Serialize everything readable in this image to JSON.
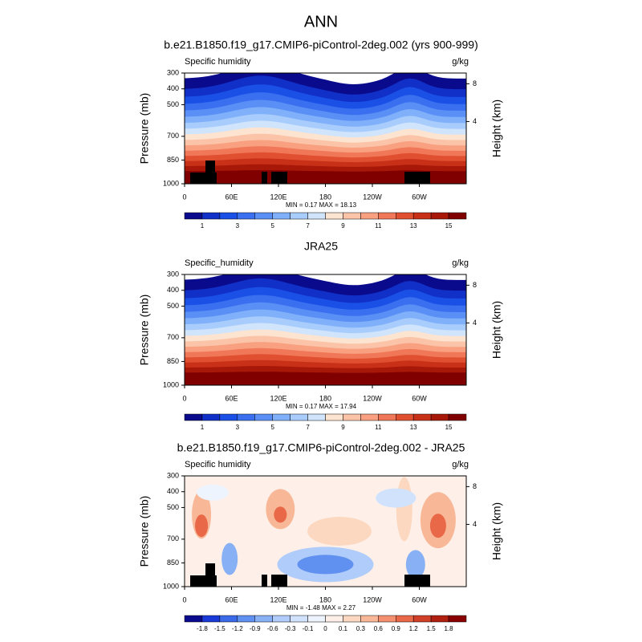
{
  "title": "ANN",
  "panels": [
    {
      "title": "b.e21.B1850.f19_g17.CMIP6-piControl-2deg.002 (yrs 900-999)",
      "left_label": "Specific humidity",
      "right_label": "g/kg",
      "y_label": "Pressure (mb)",
      "y2_label": "Height (km)",
      "ylim": [
        300,
        1000
      ],
      "yticks": [
        300,
        400,
        500,
        700,
        850,
        1000
      ],
      "y2ticks": [
        8,
        4
      ],
      "xlim": [
        0,
        360
      ],
      "xticks": [
        0,
        {
          "value": 60,
          "label": "60E"
        },
        {
          "value": 120,
          "label": "120E"
        },
        180,
        {
          "value": 240,
          "label": "120W"
        },
        {
          "value": 300,
          "label": "60W"
        }
      ],
      "stats": "MIN =  0.17  MAX =  18.13",
      "colorbar_labels": [
        1,
        3,
        5,
        7,
        9,
        11,
        13,
        15
      ],
      "colorbar_colors": [
        "#0a0a8c",
        "#1030c8",
        "#1a50e6",
        "#3a70f0",
        "#5a90f5",
        "#80b0fa",
        "#a8ccfc",
        "#d0e4fc",
        "#fde4d0",
        "#fbc4a8",
        "#f8a080",
        "#f07858",
        "#e05030",
        "#c83018",
        "#a81808",
        "#800000"
      ]
    },
    {
      "title": "JRA25",
      "left_label": "Specific_humidity",
      "right_label": "g/kg",
      "y_label": "Pressure (mb)",
      "y2_label": "Height (km)",
      "ylim": [
        300,
        1000
      ],
      "yticks": [
        300,
        400,
        500,
        700,
        850,
        1000
      ],
      "y2ticks": [
        8,
        4
      ],
      "xlim": [
        0,
        360
      ],
      "xticks": [
        0,
        {
          "value": 60,
          "label": "60E"
        },
        {
          "value": 120,
          "label": "120E"
        },
        180,
        {
          "value": 240,
          "label": "120W"
        },
        {
          "value": 300,
          "label": "60W"
        }
      ],
      "stats": "MIN =  0.17  MAX =  17.94",
      "colorbar_labels": [
        1,
        3,
        5,
        7,
        9,
        11,
        13,
        15
      ],
      "colorbar_colors": [
        "#0a0a8c",
        "#1030c8",
        "#1a50e6",
        "#3a70f0",
        "#5a90f5",
        "#80b0fa",
        "#a8ccfc",
        "#d0e4fc",
        "#fde4d0",
        "#fbc4a8",
        "#f8a080",
        "#f07858",
        "#e05030",
        "#c83018",
        "#a81808",
        "#800000"
      ]
    },
    {
      "title": "b.e21.B1850.f19_g17.CMIP6-piControl-2deg.002 - JRA25",
      "left_label": "Specific humidity",
      "right_label": "g/kg",
      "y_label": "Pressure (mb)",
      "y2_label": "Height (km)",
      "ylim": [
        300,
        1000
      ],
      "yticks": [
        300,
        400,
        500,
        700,
        850,
        1000
      ],
      "y2ticks": [
        8,
        4
      ],
      "xlim": [
        0,
        360
      ],
      "xticks": [
        0,
        {
          "value": 60,
          "label": "60E"
        },
        {
          "value": 120,
          "label": "120E"
        },
        180,
        {
          "value": 240,
          "label": "120W"
        },
        {
          "value": 300,
          "label": "60W"
        }
      ],
      "stats": "MIN =  -1.48  MAX =  2.27",
      "colorbar_labels": [
        -1.8,
        -1.5,
        -1.2,
        -0.9,
        -0.6,
        -0.3,
        -0.1,
        0,
        0.1,
        0.3,
        0.6,
        0.9,
        1.2,
        1.5,
        1.8
      ],
      "colorbar_colors": [
        "#0a0a8c",
        "#1a3ad8",
        "#3a6ae8",
        "#6090f0",
        "#88b0f5",
        "#b0ccfa",
        "#d0e2fc",
        "#eef4fe",
        "#fef0e8",
        "#fcd8c0",
        "#f8b898",
        "#f49070",
        "#e86848",
        "#d04028",
        "#b02010",
        "#880000"
      ]
    }
  ]
}
